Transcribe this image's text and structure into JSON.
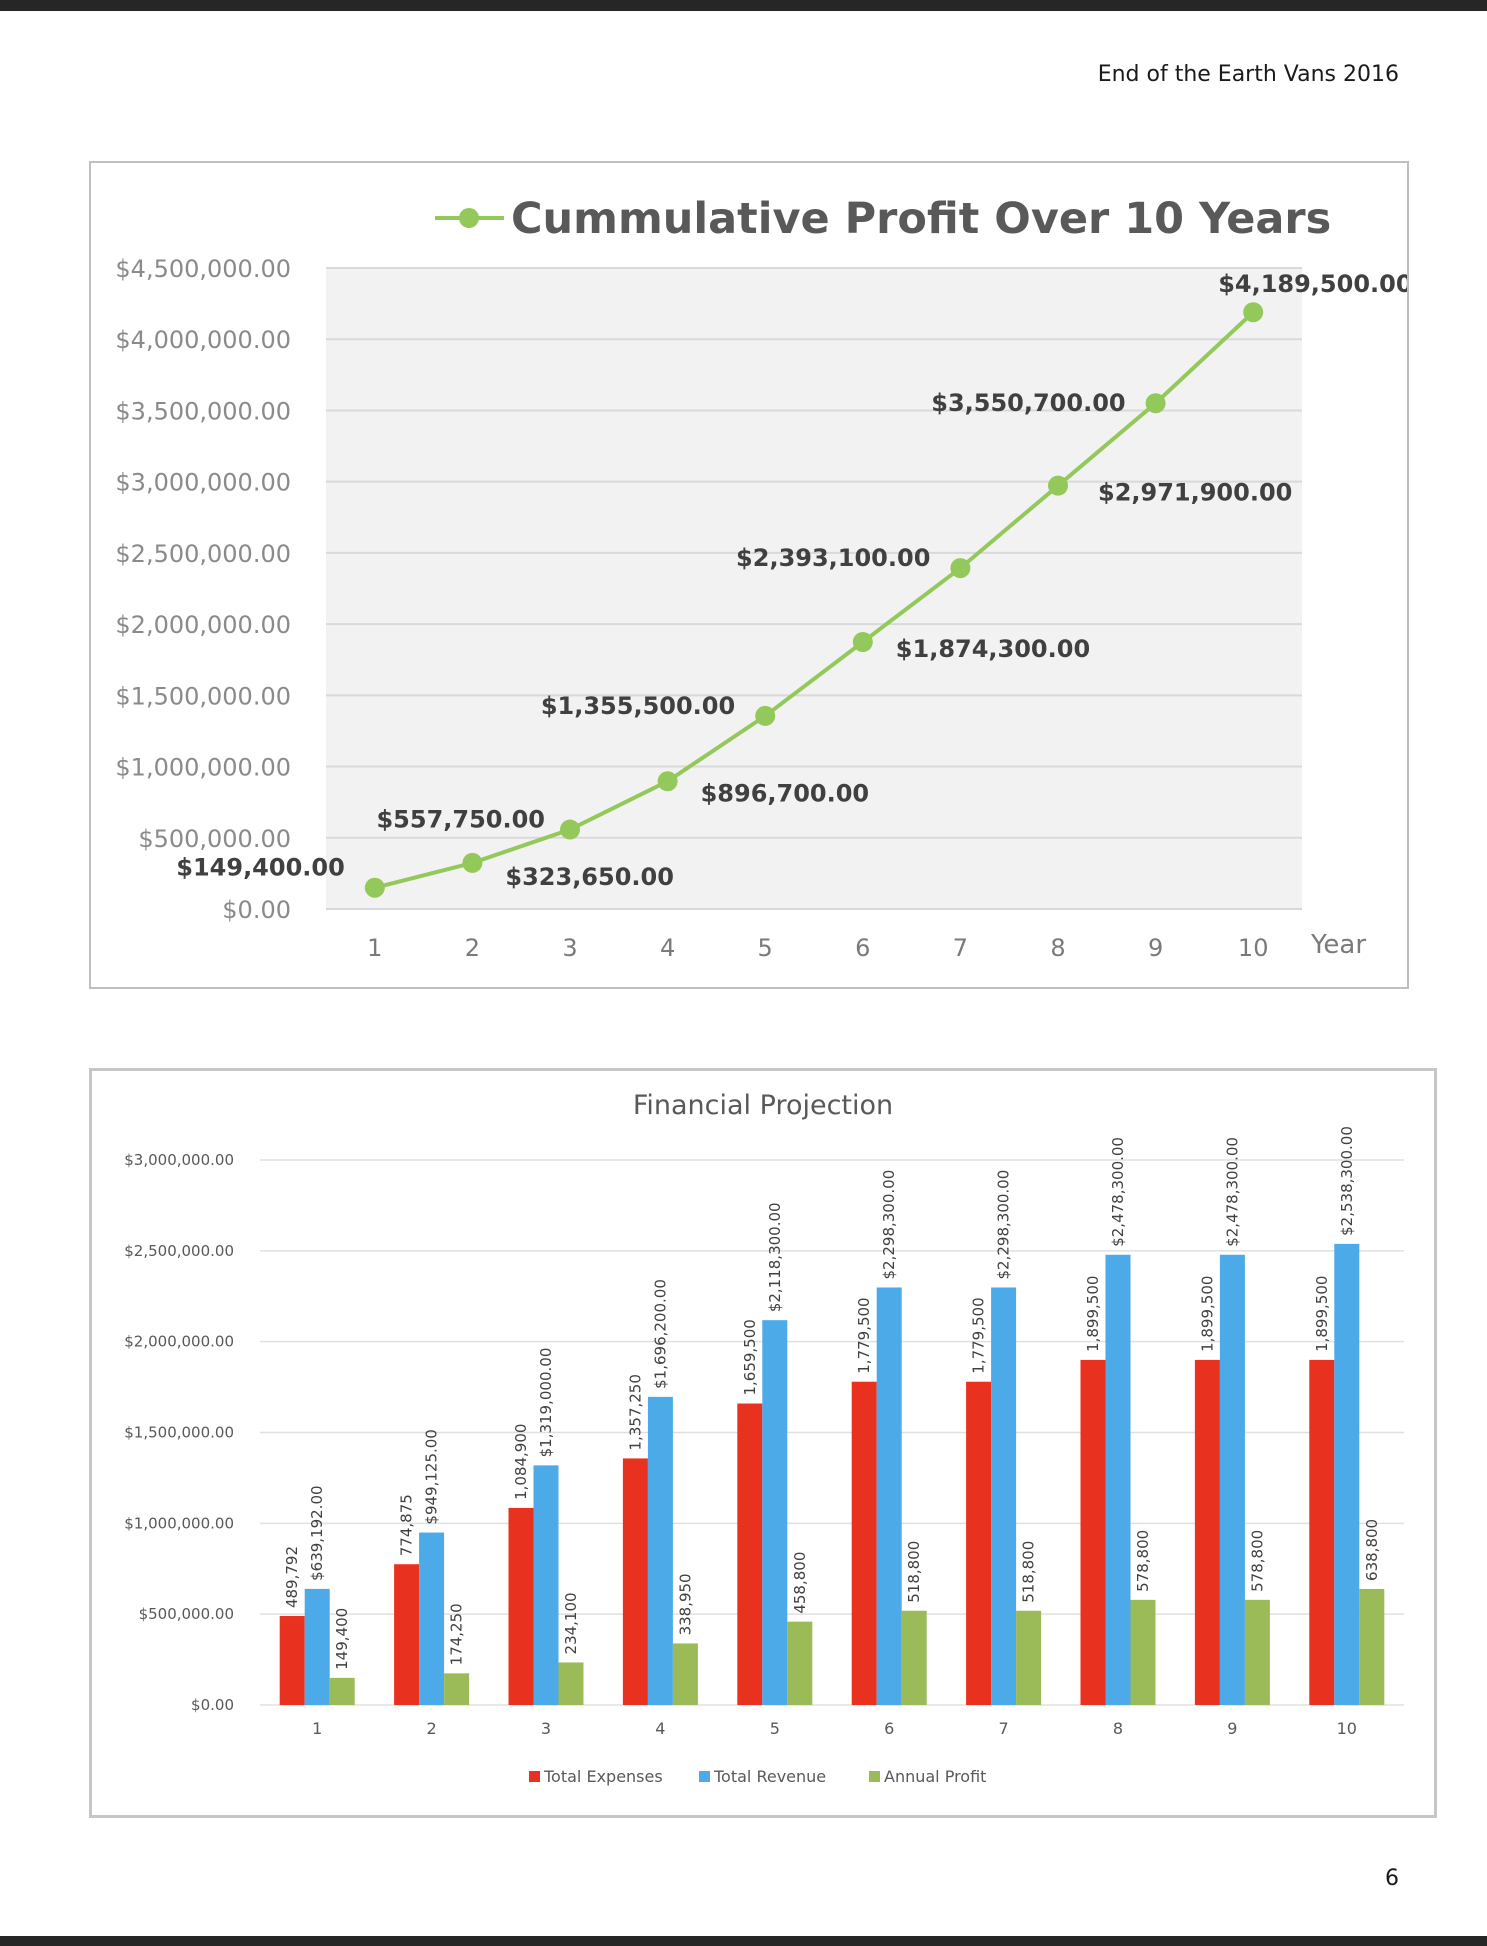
{
  "document": {
    "header": "End of the Earth Vans 2016",
    "page_number": "6"
  },
  "colors": {
    "line_series": "#92c95a",
    "plot_bg": "#f2f2f2",
    "gridline": "#d9d9d9",
    "expenses": "#e8311f",
    "revenue": "#4caae8",
    "profit": "#9bbb59"
  },
  "chart_data": [
    {
      "type": "line",
      "title": "Cummulative Profit Over 10 Years",
      "xlabel": "Year",
      "ylabel": "",
      "x": [
        1,
        2,
        3,
        4,
        5,
        6,
        7,
        8,
        9,
        10
      ],
      "y": [
        149400,
        323650,
        557750,
        896700,
        1355500,
        1874300,
        2393100,
        2971900,
        3550700,
        4189500
      ],
      "data_labels": [
        "$149,400.00",
        "$323,650.00",
        "$557,750.00",
        "$896,700.00",
        "$1,355,500.00",
        "$1,874,300.00",
        "$2,393,100.00",
        "$2,971,900.00",
        "$3,550,700.00",
        "$4,189,500.00"
      ],
      "ylim": [
        0,
        4500000
      ],
      "y_ticks": [
        0,
        500000,
        1000000,
        1500000,
        2000000,
        2500000,
        3000000,
        3500000,
        4000000,
        4500000
      ],
      "y_tick_labels": [
        "$0.00",
        "$500,000.00",
        "$1,000,000.00",
        "$1,500,000.00",
        "$2,000,000.00",
        "$2,500,000.00",
        "$3,000,000.00",
        "$3,500,000.00",
        "$4,000,000.00",
        "$4,500,000.00"
      ],
      "grid": true,
      "legend": "top"
    },
    {
      "type": "bar",
      "title": "Financial Projection",
      "xlabel": "",
      "ylabel": "",
      "categories": [
        "1",
        "2",
        "3",
        "4",
        "5",
        "6",
        "7",
        "8",
        "9",
        "10"
      ],
      "series": [
        {
          "name": "Total Expenses",
          "values": [
            489792,
            774875,
            1084900,
            1357250,
            1659500,
            1779500,
            1779500,
            1899500,
            1899500,
            1899500
          ],
          "labels": [
            "489,792",
            "774,875",
            "1,084,900",
            "1,357,250",
            "1,659,500",
            "1,779,500",
            "1,779,500",
            "1,899,500",
            "1,899,500",
            "1,899,500"
          ]
        },
        {
          "name": "Total Revenue",
          "values": [
            639192,
            949125,
            1319000,
            1696200,
            2118300,
            2298300,
            2298300,
            2478300,
            2478300,
            2538300
          ],
          "labels": [
            "$639,192.00",
            "$949,125.00",
            "$1,319,000.00",
            "$1,696,200.00",
            "$2,118,300.00",
            "$2,298,300.00",
            "$2,298,300.00",
            "$2,478,300.00",
            "$2,478,300.00",
            "$2,538,300.00"
          ]
        },
        {
          "name": "Annual Profit",
          "values": [
            149400,
            174250,
            234100,
            338950,
            458800,
            518800,
            518800,
            578800,
            578800,
            638800
          ],
          "labels": [
            "149,400",
            "174,250",
            "234,100",
            "338,950",
            "458,800",
            "518,800",
            "518,800",
            "578,800",
            "578,800",
            "638,800"
          ]
        }
      ],
      "ylim": [
        0,
        3000000
      ],
      "y_ticks": [
        0,
        500000,
        1000000,
        1500000,
        2000000,
        2500000,
        3000000
      ],
      "y_tick_labels": [
        "$0.00",
        "$500,000.00",
        "$1,000,000.00",
        "$1,500,000.00",
        "$2,000,000.00",
        "$2,500,000.00",
        "$3,000,000.00"
      ],
      "grid": true,
      "legend": "bottom"
    }
  ]
}
